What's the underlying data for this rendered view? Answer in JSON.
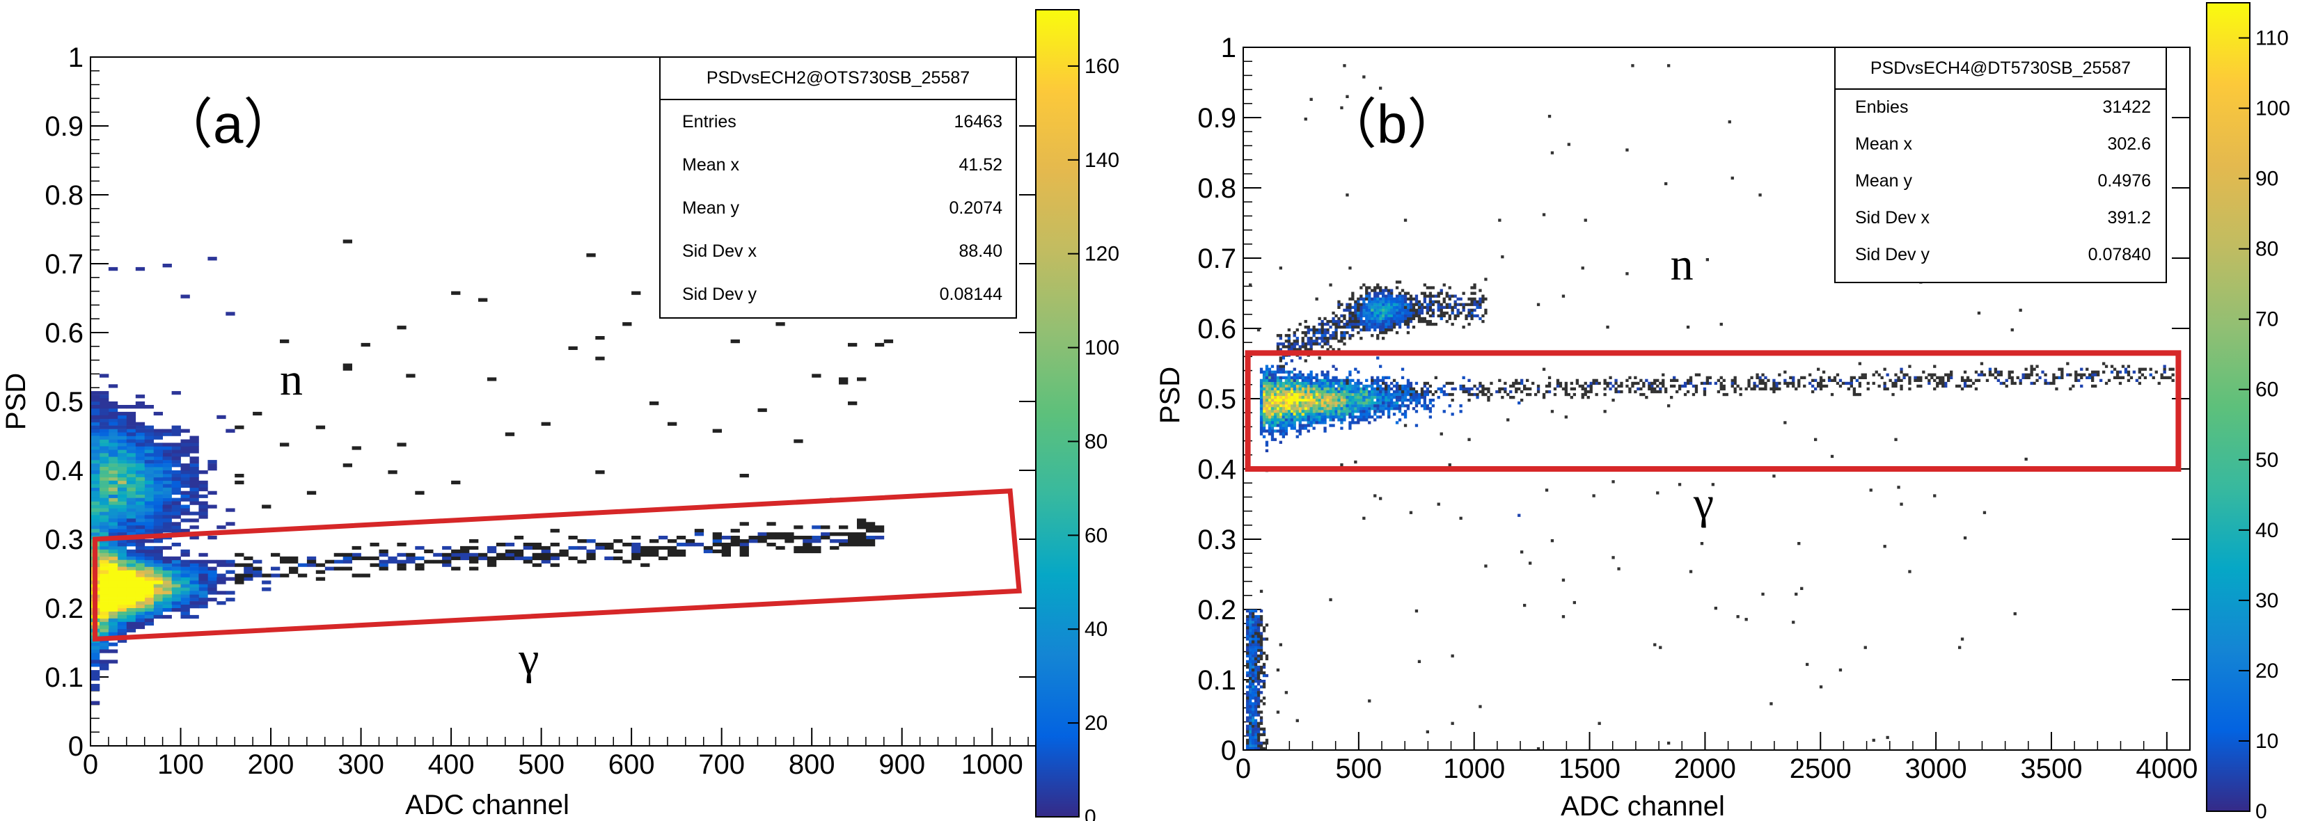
{
  "chart_data": [
    {
      "type": "heatmap",
      "panel_label": "（a）",
      "xlabel": "ADC channel",
      "ylabel": "PSD",
      "xlim": [
        0,
        1050
      ],
      "ylim": [
        0,
        1
      ],
      "xticks": [
        0,
        100,
        200,
        300,
        400,
        500,
        600,
        700,
        800,
        900,
        1000
      ],
      "yticks": [
        "0",
        "0.1",
        "0.2",
        "0.3",
        "0.4",
        "0.5",
        "0.6",
        "0.7",
        "0.8",
        "0.9",
        "1"
      ],
      "colorbar": {
        "range": [
          0,
          172
        ],
        "ticks": [
          0,
          20,
          40,
          60,
          80,
          100,
          120,
          140,
          160
        ],
        "palette": "parula"
      },
      "stats_box": {
        "title": "PSDvsECH2@OTS730SB_25587",
        "rows": [
          {
            "label": "Entries",
            "value": "16463"
          },
          {
            "label": "Mean x",
            "value": "41.52"
          },
          {
            "label": "Mean y",
            "value": "0.2074"
          },
          {
            "label": "Sid Dev x",
            "value": "88.40"
          },
          {
            "label": "Sid Dev y",
            "value": "0.08144"
          }
        ]
      },
      "annotations": [
        {
          "text": "n",
          "x": 210,
          "y": 0.51
        },
        {
          "text": "γ",
          "x": 475,
          "y": 0.105
        }
      ],
      "selection_box": {
        "color": "#d62728",
        "corners": [
          [
            5,
            0.155
          ],
          [
            1030,
            0.225
          ],
          [
            1020,
            0.37
          ],
          [
            5,
            0.3
          ]
        ]
      },
      "distribution": {
        "neutron_band": {
          "x_range": [
            0,
            150
          ],
          "psd_center": 0.38,
          "psd_width": 0.05
        },
        "gamma_band": {
          "x_range": [
            0,
            900
          ],
          "psd_start": 0.225,
          "psd_end": 0.3
        },
        "peak_counts": 172
      }
    },
    {
      "type": "heatmap",
      "panel_label": "（b）",
      "xlabel": "ADC channel",
      "ylabel": "PSD",
      "xlim": [
        0,
        4100
      ],
      "ylim": [
        0,
        1
      ],
      "xticks": [
        0,
        500,
        1000,
        1500,
        2000,
        2500,
        3000,
        3500,
        4000
      ],
      "yticks": [
        "0",
        "0.1",
        "0.2",
        "0.3",
        "0.4",
        "0.5",
        "0.6",
        "0.7",
        "0.8",
        "0.9",
        "1"
      ],
      "colorbar": {
        "range": [
          0,
          115
        ],
        "ticks": [
          0,
          10,
          20,
          30,
          40,
          50,
          60,
          70,
          80,
          90,
          100,
          110
        ],
        "palette": "parula"
      },
      "stats_box": {
        "title": "PSDvsECH4@DT5730SB_25587",
        "rows": [
          {
            "label": "Enbies",
            "value": "31422"
          },
          {
            "label": "Mean x",
            "value": "302.6"
          },
          {
            "label": "Mean y",
            "value": "0.4976"
          },
          {
            "label": "Sid Dev x",
            "value": "391.2"
          },
          {
            "label": "Sid Dev y",
            "value": "0.07840"
          }
        ]
      },
      "annotations": [
        {
          "text": "n",
          "x": 1850,
          "y": 0.67
        },
        {
          "text": "γ",
          "x": 1950,
          "y": 0.33
        }
      ],
      "selection_box": {
        "color": "#d62728",
        "corners": [
          [
            20,
            0.4
          ],
          [
            4050,
            0.4
          ],
          [
            4050,
            0.565
          ],
          [
            20,
            0.565
          ]
        ]
      },
      "distribution": {
        "gamma_band": {
          "x_range": [
            50,
            4050
          ],
          "psd_start": 0.49,
          "psd_end": 0.53
        },
        "neutron_band": {
          "x_range": [
            150,
            1050
          ],
          "psd_center": 0.62
        },
        "peak_counts": 115
      }
    }
  ]
}
